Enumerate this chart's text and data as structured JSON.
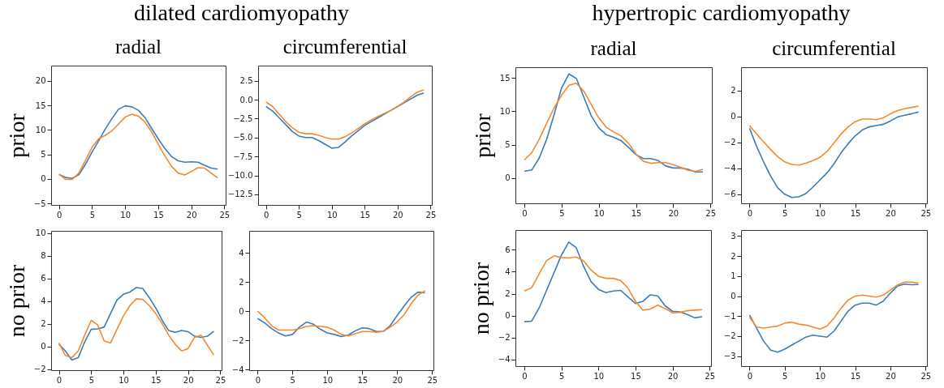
{
  "chart_data": [
    {
      "type": "line",
      "title": "radial",
      "ylabel": "prior",
      "annotations": [
        "dilated cardiomyopathy"
      ],
      "x": [
        0,
        1,
        2,
        3,
        4,
        5,
        6,
        7,
        8,
        9,
        10,
        11,
        12,
        13,
        14,
        15,
        16,
        17,
        18,
        19,
        20,
        21,
        22,
        23,
        24
      ],
      "xlim": [
        -1.2,
        25.2
      ],
      "xticks": [
        0,
        5,
        10,
        15,
        20,
        25
      ],
      "ylim": [
        -5.3,
        23.1
      ],
      "yticks": [
        {
          "value": -5,
          "label": "−5"
        },
        0,
        5,
        10,
        15,
        20
      ],
      "series": [
        {
          "color": "#3a7dba",
          "values": [
            0.9,
            0.3,
            0.1,
            0.9,
            3,
            5.5,
            7.8,
            10.2,
            12.3,
            14.2,
            14.9,
            14.7,
            14.0,
            12.5,
            10.3,
            8.2,
            6.2,
            4.6,
            3.7,
            3.4,
            3.5,
            3.4,
            2.8,
            2.2,
            2.0
          ]
        },
        {
          "color": "#f28a30",
          "values": [
            1.0,
            -0.1,
            -0.1,
            1.2,
            3.8,
            6.5,
            8.2,
            8.9,
            9.8,
            11.2,
            12.6,
            13.2,
            12.8,
            11.6,
            9.6,
            7.1,
            4.7,
            2.6,
            1.2,
            0.8,
            1.5,
            2.3,
            2.2,
            1.2,
            0.2
          ]
        }
      ]
    },
    {
      "type": "line",
      "title": "circumferential",
      "x": [
        0,
        1,
        2,
        3,
        4,
        5,
        6,
        7,
        8,
        9,
        10,
        11,
        12,
        13,
        14,
        15,
        16,
        17,
        18,
        19,
        20,
        21,
        22,
        23,
        24
      ],
      "xlim": [
        -1.2,
        25.2
      ],
      "xticks": [
        0,
        5,
        10,
        15,
        20,
        25
      ],
      "ylim": [
        -13.9,
        4.5
      ],
      "yticks": [
        {
          "value": -12.5,
          "label": "−12.5"
        },
        {
          "value": -10,
          "label": "−10.0"
        },
        {
          "value": -7.5,
          "label": "−7.5"
        },
        {
          "value": -5,
          "label": "−5.0"
        },
        {
          "value": -2.5,
          "label": "−2.5"
        },
        {
          "value": 0,
          "label": "0.0"
        },
        2.5
      ],
      "series": [
        {
          "color": "#3a7dba",
          "values": [
            -0.9,
            -1.5,
            -2.4,
            -3.3,
            -4.2,
            -4.8,
            -5.0,
            -5.0,
            -5.4,
            -5.9,
            -6.4,
            -6.3,
            -5.6,
            -4.8,
            -4.1,
            -3.4,
            -2.9,
            -2.4,
            -1.9,
            -1.4,
            -0.9,
            -0.4,
            0.1,
            0.6,
            0.9
          ]
        },
        {
          "color": "#f28a30",
          "values": [
            -0.3,
            -0.9,
            -1.9,
            -2.9,
            -3.7,
            -4.3,
            -4.5,
            -4.5,
            -4.7,
            -5.0,
            -5.2,
            -5.2,
            -4.9,
            -4.4,
            -3.8,
            -3.2,
            -2.7,
            -2.2,
            -1.8,
            -1.4,
            -0.9,
            -0.3,
            0.4,
            1.0,
            1.3
          ]
        }
      ]
    },
    {
      "type": "line",
      "title": "radial",
      "ylabel": "prior",
      "annotations": [
        "hypertropic cardiomyopathy"
      ],
      "x": [
        0,
        1,
        2,
        3,
        4,
        5,
        6,
        7,
        8,
        9,
        10,
        11,
        12,
        13,
        14,
        15,
        16,
        17,
        18,
        19,
        20,
        21,
        22,
        23,
        24
      ],
      "xlim": [
        -1.2,
        25.2
      ],
      "xticks": [
        0,
        5,
        10,
        15,
        20,
        25
      ],
      "ylim": [
        -3.8,
        16.6
      ],
      "yticks": [
        0,
        5,
        10,
        15
      ],
      "series": [
        {
          "color": "#3a7dba",
          "values": [
            1.0,
            1.2,
            3.0,
            5.8,
            9.5,
            13.5,
            15.6,
            14.9,
            12.1,
            9.3,
            7.5,
            6.5,
            6.1,
            5.6,
            4.6,
            3.5,
            2.9,
            2.9,
            2.6,
            1.8,
            1.5,
            1.5,
            1.3,
            0.9,
            0.9
          ]
        },
        {
          "color": "#f28a30",
          "values": [
            2.7,
            3.8,
            5.8,
            8.2,
            10.5,
            12.4,
            13.9,
            14.2,
            13.0,
            11.0,
            9.0,
            7.6,
            6.9,
            6.3,
            5.2,
            3.6,
            2.5,
            2.2,
            2.3,
            2.3,
            2.0,
            1.6,
            1.15,
            1.0,
            1.3
          ]
        }
      ]
    },
    {
      "type": "line",
      "title": "circumferential",
      "x": [
        0,
        1,
        2,
        3,
        4,
        5,
        6,
        7,
        8,
        9,
        10,
        11,
        12,
        13,
        14,
        15,
        16,
        17,
        18,
        19,
        20,
        21,
        22,
        23,
        24
      ],
      "xlim": [
        -1.2,
        25.2
      ],
      "xticks": [
        0,
        5,
        10,
        15,
        20,
        25
      ],
      "ylim": [
        -6.7,
        3.8
      ],
      "yticks": [
        {
          "value": -6,
          "label": "−6"
        },
        {
          "value": -4,
          "label": "−4"
        },
        {
          "value": -2,
          "label": "−2"
        },
        0,
        2
      ],
      "series": [
        {
          "color": "#3a7dba",
          "values": [
            -0.9,
            -2.3,
            -3.5,
            -4.6,
            -5.5,
            -6.0,
            -6.25,
            -6.2,
            -5.95,
            -5.45,
            -4.9,
            -4.35,
            -3.65,
            -2.8,
            -2.1,
            -1.5,
            -1.05,
            -0.8,
            -0.7,
            -0.6,
            -0.35,
            -0.05,
            0.1,
            0.2,
            0.35
          ]
        },
        {
          "color": "#f28a30",
          "values": [
            -0.7,
            -1.35,
            -1.95,
            -2.55,
            -3.1,
            -3.5,
            -3.7,
            -3.75,
            -3.6,
            -3.4,
            -3.15,
            -2.7,
            -2.05,
            -1.35,
            -0.8,
            -0.4,
            -0.2,
            -0.2,
            -0.25,
            -0.1,
            0.2,
            0.45,
            0.6,
            0.7,
            0.8
          ]
        }
      ]
    },
    {
      "type": "line",
      "ylabel": "no prior",
      "x": [
        0,
        1,
        2,
        3,
        4,
        5,
        6,
        7,
        8,
        9,
        10,
        11,
        12,
        13,
        14,
        15,
        16,
        17,
        18,
        19,
        20,
        21,
        22,
        23,
        24
      ],
      "xlim": [
        -1.2,
        25.2
      ],
      "xticks": [
        0,
        5,
        10,
        15,
        20,
        25
      ],
      "ylim": [
        -2.1,
        10.2
      ],
      "yticks": [
        {
          "value": -2,
          "label": "−2"
        },
        0,
        2,
        4,
        6,
        8,
        10
      ],
      "series": [
        {
          "color": "#3a7dba",
          "values": [
            0.2,
            -0.4,
            -1.2,
            -1.0,
            0.4,
            1.5,
            1.55,
            1.7,
            2.9,
            4.1,
            4.6,
            4.8,
            5.2,
            5.1,
            4.3,
            3.4,
            2.3,
            1.4,
            1.25,
            1.4,
            1.3,
            0.9,
            0.8,
            0.9,
            1.35
          ]
        },
        {
          "color": "#f28a30",
          "values": [
            0.3,
            -0.8,
            -1.0,
            -0.4,
            1.0,
            2.3,
            1.9,
            0.5,
            0.3,
            1.5,
            2.7,
            3.6,
            4.2,
            4.15,
            3.6,
            2.9,
            2.0,
            1.0,
            0.2,
            -0.4,
            -0.2,
            0.8,
            1.0,
            0.1,
            -0.75
          ]
        }
      ]
    },
    {
      "type": "line",
      "x": [
        0,
        1,
        2,
        3,
        4,
        5,
        6,
        7,
        8,
        9,
        10,
        11,
        12,
        13,
        14,
        15,
        16,
        17,
        18,
        19,
        20,
        21,
        22,
        23,
        24
      ],
      "xlim": [
        -1.2,
        25.2
      ],
      "xticks": [
        0,
        5,
        10,
        15,
        20,
        25
      ],
      "ylim": [
        -4.05,
        5.5
      ],
      "yticks": [
        {
          "value": -4,
          "label": "−4"
        },
        {
          "value": -2,
          "label": "−2"
        },
        0,
        2,
        4
      ],
      "series": [
        {
          "color": "#3a7dba",
          "values": [
            -0.5,
            -0.8,
            -1.2,
            -1.5,
            -1.7,
            -1.6,
            -1.1,
            -0.75,
            -0.9,
            -1.25,
            -1.5,
            -1.6,
            -1.75,
            -1.65,
            -1.35,
            -1.15,
            -1.2,
            -1.4,
            -1.4,
            -1.0,
            -0.3,
            0.35,
            0.95,
            1.3,
            1.25
          ]
        },
        {
          "color": "#f28a30",
          "values": [
            0.0,
            -0.45,
            -1.0,
            -1.3,
            -1.3,
            -1.3,
            -1.2,
            -1.05,
            -1.0,
            -1.05,
            -1.1,
            -1.3,
            -1.6,
            -1.7,
            -1.55,
            -1.4,
            -1.4,
            -1.45,
            -1.4,
            -1.1,
            -0.75,
            -0.25,
            0.5,
            1.1,
            1.4
          ]
        }
      ]
    },
    {
      "type": "line",
      "ylabel": "no prior",
      "x": [
        0,
        1,
        2,
        3,
        4,
        5,
        6,
        7,
        8,
        9,
        10,
        11,
        12,
        13,
        14,
        15,
        16,
        17,
        18,
        19,
        20,
        21,
        22,
        23,
        24
      ],
      "xlim": [
        -1.2,
        25.2
      ],
      "xticks": [
        0,
        5,
        10,
        15,
        20,
        25
      ],
      "ylim": [
        -4.6,
        7.8
      ],
      "yticks": [
        {
          "value": -4,
          "label": "−4"
        },
        {
          "value": -2,
          "label": "−2"
        },
        0,
        2,
        4,
        6
      ],
      "series": [
        {
          "color": "#3a7dba",
          "values": [
            -0.55,
            -0.5,
            0.7,
            2.3,
            3.9,
            5.5,
            6.7,
            6.2,
            4.5,
            3.1,
            2.4,
            2.1,
            2.25,
            2.3,
            1.7,
            1.1,
            1.3,
            1.9,
            1.8,
            0.9,
            0.4,
            0.35,
            0.1,
            -0.2,
            -0.1
          ]
        },
        {
          "color": "#f28a30",
          "values": [
            2.25,
            2.55,
            3.8,
            5.0,
            5.45,
            5.3,
            5.25,
            5.35,
            5.0,
            4.15,
            3.6,
            3.4,
            3.4,
            3.2,
            2.5,
            1.3,
            0.5,
            0.6,
            0.95,
            0.65,
            0.25,
            0.3,
            0.45,
            0.5,
            0.55
          ]
        }
      ]
    },
    {
      "type": "line",
      "x": [
        0,
        1,
        2,
        3,
        4,
        5,
        6,
        7,
        8,
        9,
        10,
        11,
        12,
        13,
        14,
        15,
        16,
        17,
        18,
        19,
        20,
        21,
        22,
        23,
        24
      ],
      "xlim": [
        -1.2,
        25.2
      ],
      "xticks": [
        0,
        5,
        10,
        15,
        20,
        25
      ],
      "ylim": [
        -3.5,
        3.3
      ],
      "yticks": [
        {
          "value": -3,
          "label": "−3"
        },
        {
          "value": -2,
          "label": "−2"
        },
        {
          "value": -1,
          "label": "−1"
        },
        0,
        1,
        2,
        3
      ],
      "series": [
        {
          "color": "#3a7dba",
          "values": [
            -0.95,
            -1.6,
            -2.25,
            -2.7,
            -2.8,
            -2.65,
            -2.45,
            -2.25,
            -2.05,
            -1.95,
            -2.0,
            -2.05,
            -1.75,
            -1.25,
            -0.75,
            -0.45,
            -0.35,
            -0.35,
            -0.45,
            -0.25,
            0.15,
            0.5,
            0.6,
            0.57,
            0.58
          ]
        },
        {
          "color": "#f28a30",
          "values": [
            -1.05,
            -1.55,
            -1.6,
            -1.55,
            -1.5,
            -1.35,
            -1.3,
            -1.4,
            -1.45,
            -1.55,
            -1.65,
            -1.5,
            -1.1,
            -0.6,
            -0.2,
            0.0,
            0.05,
            0.0,
            -0.05,
            0.05,
            0.3,
            0.55,
            0.7,
            0.7,
            0.65
          ]
        }
      ]
    }
  ]
}
